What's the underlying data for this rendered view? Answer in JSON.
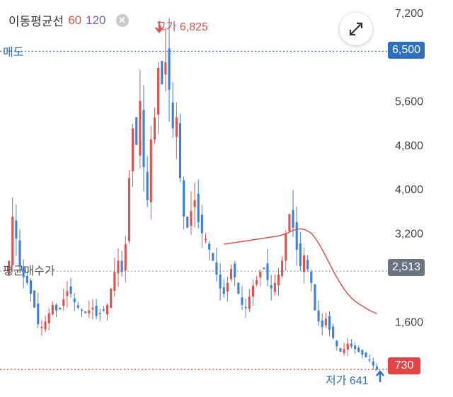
{
  "moving_average": {
    "title": "이동평균선",
    "period_short": "60",
    "period_long": "120",
    "close_icon": "close-icon"
  },
  "expand_icon": "expand-arrows-icon",
  "sell_line": {
    "label": "매도",
    "price": "6,500",
    "color": "#2f6fbf"
  },
  "avg_buy_line": {
    "label": "평균매수가",
    "price": "2,513",
    "color": "#9ca3af"
  },
  "current_price": {
    "price": "730",
    "color": "#e04646"
  },
  "high_marker": {
    "label": "고가 6,825"
  },
  "low_marker": {
    "label": "저가 641"
  },
  "colors": {
    "up": "#d9534f",
    "down": "#3d7fd9",
    "ma60": "#d9534f"
  },
  "chart_data": {
    "type": "candlestick",
    "y_ticks": [
      "7,200",
      "6,500",
      "5,600",
      "4,800",
      "4,000",
      "3,200",
      "2,513",
      "1,600",
      "730"
    ],
    "y_axis_range": [
      500,
      7300
    ],
    "closes": [
      2700,
      3500,
      3100,
      2600,
      2400,
      2300,
      2100,
      1850,
      1550,
      1500,
      1600,
      1750,
      1900,
      1800,
      1850,
      2000,
      2150,
      2100,
      1950,
      1850,
      1800,
      1750,
      1800,
      1850,
      1700,
      1750,
      1800,
      1900,
      2200,
      2500,
      2700,
      2500,
      3000,
      4200,
      5100,
      4800,
      5600,
      4400,
      3800,
      4900,
      5300,
      6200,
      5900,
      6300,
      5800,
      5100,
      5300,
      4200,
      3500,
      3300,
      3600,
      3800,
      3400,
      3200,
      3100,
      2900,
      2700,
      2450,
      2200,
      2100,
      2300,
      2550,
      2400,
      2100,
      1900,
      1850,
      2050,
      2250,
      2350,
      2500,
      2550,
      2350,
      2200,
      2300,
      2450,
      2700,
      3200,
      3550,
      3300,
      2900,
      2600,
      2800,
      2550,
      2300,
      1800,
      1600,
      1500,
      1650,
      1450,
      1300,
      1150,
      1050,
      1100,
      1200,
      1150,
      1100,
      1050,
      1000,
      950,
      900,
      800,
      730
    ],
    "ma60": [
      null,
      null,
      null,
      null,
      null,
      null,
      null,
      null,
      null,
      null,
      null,
      null,
      null,
      null,
      null,
      null,
      null,
      null,
      null,
      null,
      null,
      null,
      null,
      null,
      null,
      null,
      null,
      null,
      null,
      null,
      null,
      null,
      null,
      null,
      null,
      null,
      null,
      null,
      null,
      null,
      null,
      null,
      null,
      null,
      null,
      null,
      null,
      null,
      null,
      null,
      null,
      null,
      null,
      null,
      null,
      null,
      null,
      null,
      null,
      3000,
      3010,
      3020,
      3030,
      3040,
      3050,
      3060,
      3070,
      3080,
      3090,
      3100,
      3110,
      3120,
      3130,
      3140,
      3150,
      3170,
      3190,
      3220,
      3250,
      3270,
      3280,
      3270,
      3240,
      3200,
      3120,
      3020,
      2900,
      2780,
      2650,
      2520,
      2400,
      2290,
      2190,
      2100,
      2030,
      1970,
      1920,
      1880,
      1840,
      1800,
      1770,
      1740
    ]
  }
}
